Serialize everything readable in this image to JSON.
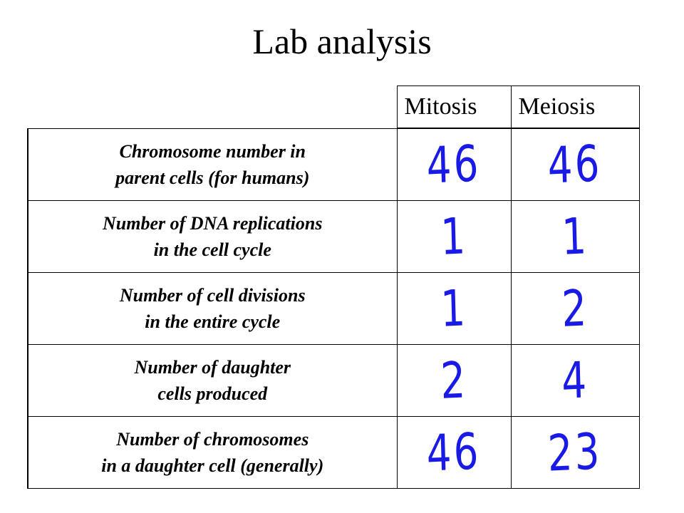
{
  "title": "Lab analysis",
  "columns": {
    "mitosis": "Mitosis",
    "meiosis": "Meiosis"
  },
  "rows": [
    {
      "label_line1": "Chromosome number in",
      "label_line2": "parent cells (for humans)",
      "mitosis": "46",
      "meiosis": "46"
    },
    {
      "label_line1": "Number of DNA replications",
      "label_line2": "in the cell cycle",
      "mitosis": "1",
      "meiosis": "1"
    },
    {
      "label_line1": "Number of cell divisions",
      "label_line2": "in the entire cycle",
      "mitosis": "1",
      "meiosis": "2"
    },
    {
      "label_line1": "Number of daughter",
      "label_line2": "cells produced",
      "mitosis": "2",
      "meiosis": "4"
    },
    {
      "label_line1": "Number of chromosomes",
      "label_line2": "in a daughter cell (generally)",
      "mitosis": "46",
      "meiosis": "23"
    }
  ],
  "colors": {
    "handwriting": "#1a1ae6",
    "text": "#000000",
    "background": "#ffffff"
  }
}
